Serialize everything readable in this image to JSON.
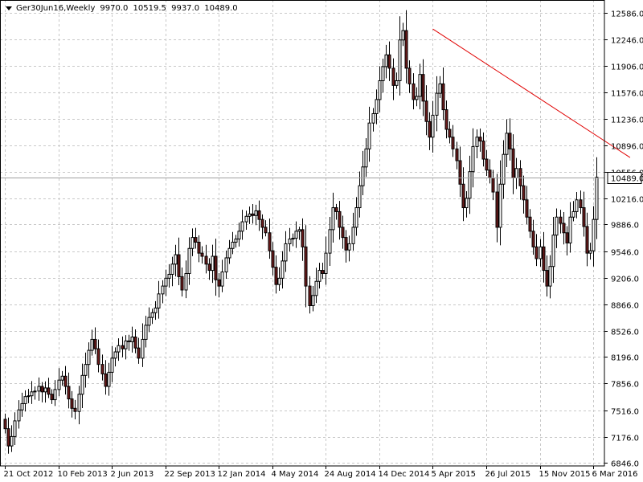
{
  "header": {
    "symbol": "Ger30Jun16,Weekly",
    "open": "9970.0",
    "high": "10519.5",
    "low": "9937.0",
    "close": "10489.0"
  },
  "colors": {
    "background": "#ffffff",
    "grid": "#c8c8c8",
    "bull_candle": "#ffffff",
    "bear_candle": "#6b1a1a",
    "candle_outline": "#000000",
    "trendline": "#e00000",
    "price_label_bg": "#ffffff"
  },
  "chart_data": {
    "type": "candlestick",
    "symbol": "Ger30Jun16",
    "timeframe": "Weekly",
    "current_price": 10489.0,
    "current_price_label": "10489.0",
    "ylim": [
      6846,
      12586
    ],
    "y_ticks": [
      "12586.0",
      "12246.0",
      "11906.0",
      "11576.0",
      "11236.0",
      "10896.0",
      "10556.0",
      "10216.0",
      "9886.0",
      "9546.0",
      "9206.0",
      "8866.0",
      "8526.0",
      "8196.0",
      "7856.0",
      "7516.0",
      "7176.0",
      "6846.0"
    ],
    "x_ticks": [
      "21 Oct 2012",
      "10 Feb 2013",
      "2 Jun 2013",
      "22 Sep 2013",
      "12 Jan 2014",
      "4 May 2014",
      "24 Aug 2014",
      "14 Dec 2014",
      "5 Apr 2015",
      "26 Jul 2015",
      "15 Nov 2015",
      "6 Mar 2016"
    ],
    "x_tick_week_index": [
      0,
      16,
      32,
      48,
      64,
      80,
      96,
      112,
      128,
      144,
      160,
      176
    ],
    "total_weeks": 187,
    "trendline": {
      "from_week": 128,
      "from_price": 12380,
      "to_week": 187,
      "to_price": 10740
    },
    "closes": [
      7280,
      7060,
      7180,
      7380,
      7520,
      7600,
      7690,
      7700,
      7750,
      7760,
      7820,
      7750,
      7800,
      7720,
      7650,
      7780,
      7900,
      7950,
      7820,
      7660,
      7540,
      7500,
      7720,
      7960,
      8100,
      8280,
      8420,
      8300,
      8100,
      7980,
      7820,
      8000,
      8180,
      8260,
      8340,
      8300,
      8400,
      8390,
      8450,
      8310,
      8180,
      8420,
      8600,
      8700,
      8760,
      8820,
      9000,
      9100,
      9200,
      9250,
      9380,
      9500,
      9220,
      9050,
      9260,
      9580,
      9720,
      9660,
      9520,
      9480,
      9380,
      9300,
      9480,
      9180,
      9100,
      9280,
      9460,
      9580,
      9660,
      9700,
      9800,
      9920,
      9990,
      10020,
      10000,
      10060,
      9950,
      9850,
      9780,
      9550,
      9340,
      9120,
      9200,
      9420,
      9640,
      9700,
      9710,
      9800,
      9820,
      9600,
      9100,
      8850,
      8980,
      9160,
      9300,
      9260,
      9520,
      9820,
      10100,
      10050,
      9850,
      9720,
      9560,
      9640,
      9850,
      10100,
      10380,
      10620,
      10850,
      11180,
      11300,
      11480,
      11720,
      11900,
      12050,
      11880,
      11660,
      11720,
      12240,
      12360,
      11880,
      11680,
      11480,
      11520,
      11800,
      11460,
      11200,
      11000,
      11280,
      11560,
      11680,
      11350,
      11100,
      11000,
      10850,
      10700,
      10400,
      10100,
      10220,
      10560,
      10880,
      11000,
      10950,
      10720,
      10580,
      10480,
      10300,
      9850,
      10400,
      10780,
      11050,
      10850,
      10480,
      10600,
      10380,
      10200,
      9980,
      9800,
      9600,
      9450,
      9600,
      9300,
      9100,
      9350,
      9750,
      9980,
      9900,
      9780,
      9650,
      9980,
      10050,
      10200,
      10100,
      9860,
      9520,
      9550,
      9950,
      10489
    ]
  }
}
